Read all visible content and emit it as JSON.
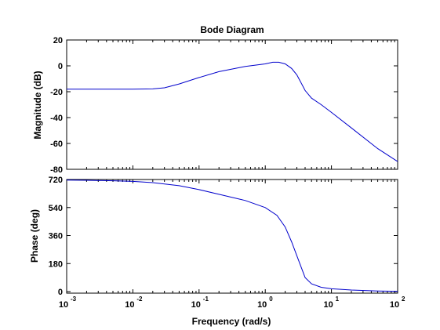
{
  "chart_data": [
    {
      "type": "line",
      "title": "Bode Diagram",
      "xlabel": "",
      "ylabel": "Magnitude  (dB)",
      "xscale": "log",
      "xlim": [
        0.001,
        100
      ],
      "ylim": [
        -80,
        20
      ],
      "yticks": [
        20,
        0,
        -20,
        -40,
        -60,
        -80
      ],
      "grid": false,
      "color": "#0000cc",
      "series": [
        {
          "x": [
            0.001,
            0.002,
            0.005,
            0.01,
            0.02,
            0.03,
            0.05,
            0.1,
            0.2,
            0.5,
            1.0,
            1.3,
            1.6,
            2.0,
            2.5,
            3.0,
            4.0,
            5.0,
            7.0,
            10,
            20,
            50,
            100
          ],
          "y": [
            -18,
            -18,
            -18,
            -18,
            -17.8,
            -17,
            -14,
            -9,
            -4.5,
            -0.5,
            1.5,
            2.8,
            2.8,
            1.5,
            -2,
            -7,
            -19,
            -25,
            -30,
            -36,
            -48,
            -64,
            -74
          ]
        }
      ]
    },
    {
      "type": "line",
      "title": "",
      "xlabel": "Frequency  (rad/s)",
      "ylabel": "Phase (deg)",
      "xscale": "log",
      "xlim": [
        0.001,
        100
      ],
      "ylim": [
        -10,
        720
      ],
      "yticks": [
        720,
        540,
        360,
        180,
        0
      ],
      "xticks": [
        {
          "base": "10",
          "exp": "-3",
          "value": 0.001
        },
        {
          "base": "10",
          "exp": "-2",
          "value": 0.01
        },
        {
          "base": "10",
          "exp": "-1",
          "value": 0.1
        },
        {
          "base": "10",
          "exp": "0",
          "value": 1
        },
        {
          "base": "10",
          "exp": "1",
          "value": 10
        },
        {
          "base": "10",
          "exp": "2",
          "value": 100
        }
      ],
      "grid": false,
      "color": "#0000cc",
      "series": [
        {
          "x": [
            0.001,
            0.002,
            0.005,
            0.01,
            0.02,
            0.05,
            0.1,
            0.2,
            0.5,
            1.0,
            1.5,
            2.0,
            2.5,
            3.0,
            4.0,
            5.0,
            7.0,
            10,
            20,
            50,
            100
          ],
          "y": [
            716,
            715,
            712,
            708,
            700,
            680,
            655,
            625,
            585,
            540,
            490,
            415,
            320,
            230,
            90,
            50,
            28,
            18,
            10,
            4,
            2
          ]
        }
      ]
    }
  ]
}
